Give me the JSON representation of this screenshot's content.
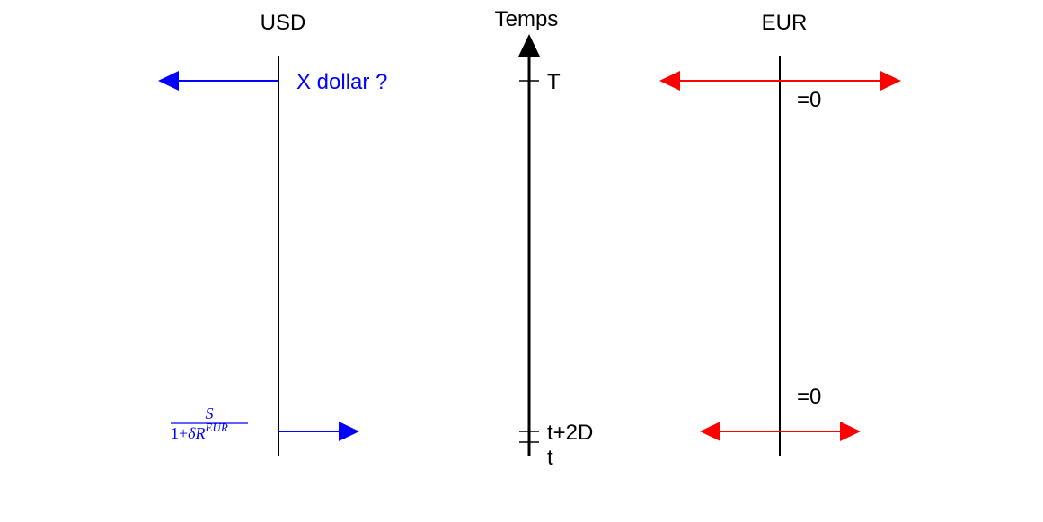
{
  "diagram": {
    "usd": {
      "header": "USD",
      "top_label": "X dollar ?",
      "bottom_formula": {
        "numerator": "S",
        "denominator_prefix": "1+",
        "delta": "δ",
        "r": "R",
        "superscript": "EUR"
      },
      "color": "#0000ff"
    },
    "time": {
      "header": "Temps",
      "tick_top": "T",
      "tick_spot": "t+2D",
      "tick_now": "t",
      "color": "#000000"
    },
    "eur": {
      "header": "EUR",
      "top_value": "=0",
      "bottom_value": "=0",
      "color": "#ff0000"
    }
  }
}
